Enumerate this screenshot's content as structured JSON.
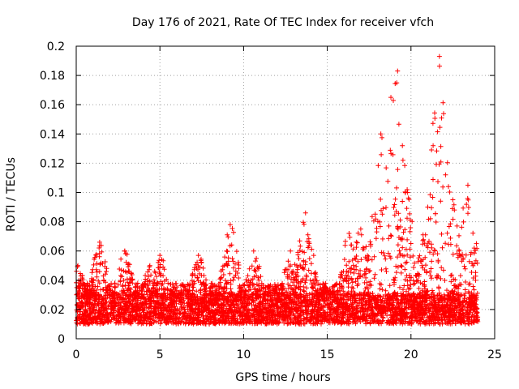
{
  "chart_data": {
    "type": "scatter",
    "title": "Day 176 of 2021, Rate Of TEC Index for receiver vfch",
    "xlabel": "GPS time / hours",
    "ylabel": "ROTI / TECUs",
    "xlim": [
      0,
      25
    ],
    "ylim": [
      0,
      0.2
    ],
    "x_ticks": [
      0,
      5,
      10,
      15,
      20,
      25
    ],
    "x_tick_labels": [
      "0",
      "5",
      "10",
      "15",
      "20",
      "25"
    ],
    "y_ticks": [
      0,
      0.02,
      0.04,
      0.06,
      0.08,
      0.1,
      0.12,
      0.14,
      0.16,
      0.18,
      0.2
    ],
    "y_tick_labels": [
      "0",
      "0.02",
      "0.04",
      "0.06",
      "0.08",
      "0.1",
      "0.12",
      "0.14",
      "0.16",
      "0.18",
      "0.2"
    ],
    "grid": true,
    "marker": "+",
    "marker_color": "#ff0000",
    "series": [
      {
        "name": "ROTI",
        "x_range": [
          0,
          24
        ],
        "baseline_band": [
          0.01,
          0.03
        ],
        "envelope_peaks": [
          {
            "x": 0.1,
            "y": 0.05
          },
          {
            "x": 1.4,
            "y": 0.066
          },
          {
            "x": 2.9,
            "y": 0.06
          },
          {
            "x": 4.4,
            "y": 0.05
          },
          {
            "x": 5.0,
            "y": 0.057
          },
          {
            "x": 7.3,
            "y": 0.057
          },
          {
            "x": 9.2,
            "y": 0.078
          },
          {
            "x": 10.6,
            "y": 0.06
          },
          {
            "x": 12.8,
            "y": 0.06
          },
          {
            "x": 13.7,
            "y": 0.086
          },
          {
            "x": 16.3,
            "y": 0.072
          },
          {
            "x": 17.0,
            "y": 0.075
          },
          {
            "x": 18.2,
            "y": 0.14
          },
          {
            "x": 18.8,
            "y": 0.165
          },
          {
            "x": 19.2,
            "y": 0.183
          },
          {
            "x": 19.8,
            "y": 0.1
          },
          {
            "x": 21.0,
            "y": 0.09
          },
          {
            "x": 21.7,
            "y": 0.193
          },
          {
            "x": 22.5,
            "y": 0.095
          },
          {
            "x": 23.4,
            "y": 0.105
          }
        ]
      }
    ]
  }
}
